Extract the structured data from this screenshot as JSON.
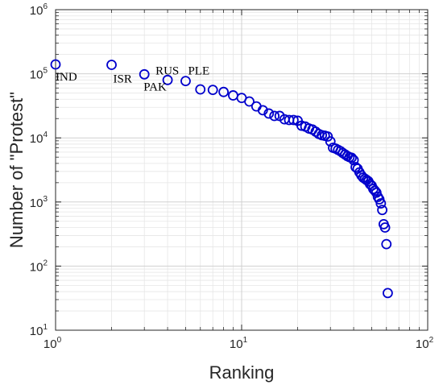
{
  "chart_data": {
    "type": "scatter",
    "title": "",
    "xlabel": "Ranking",
    "ylabel": "Number of \"Protest\"",
    "x_scale": "log",
    "y_scale": "log",
    "xlim": [
      1,
      100
    ],
    "ylim": [
      10,
      1000000
    ],
    "grid": true,
    "marker": "open-circle",
    "marker_color": "#0000CC",
    "x_ticks": [
      {
        "base": "10",
        "exp": "0",
        "value": 1
      },
      {
        "base": "10",
        "exp": "1",
        "value": 10
      },
      {
        "base": "10",
        "exp": "2",
        "value": 100
      }
    ],
    "y_ticks": [
      {
        "base": "10",
        "exp": "1",
        "value": 10
      },
      {
        "base": "10",
        "exp": "2",
        "value": 100
      },
      {
        "base": "10",
        "exp": "3",
        "value": 1000
      },
      {
        "base": "10",
        "exp": "4",
        "value": 10000
      },
      {
        "base": "10",
        "exp": "5",
        "value": 100000
      },
      {
        "base": "10",
        "exp": "6",
        "value": 1000000
      }
    ],
    "annotations": [
      {
        "text": "IND",
        "x": 1,
        "y": 140000
      },
      {
        "text": "ISR",
        "x": 2,
        "y": 138000
      },
      {
        "text": "PAK",
        "x": 3,
        "y": 98000
      },
      {
        "text": "RUS",
        "x": 4,
        "y": 80000
      },
      {
        "text": "PLE",
        "x": 5,
        "y": 77000
      }
    ],
    "points": [
      [
        1,
        140000
      ],
      [
        2,
        138000
      ],
      [
        3,
        98000
      ],
      [
        4,
        80000
      ],
      [
        5,
        77000
      ],
      [
        6,
        57000
      ],
      [
        7,
        56000
      ],
      [
        8,
        52000
      ],
      [
        9,
        46000
      ],
      [
        10,
        42000
      ],
      [
        11,
        37000
      ],
      [
        12,
        31000
      ],
      [
        13,
        27000
      ],
      [
        14,
        24000
      ],
      [
        15,
        22000
      ],
      [
        16,
        22000
      ],
      [
        17,
        19500
      ],
      [
        18,
        19000
      ],
      [
        19,
        19000
      ],
      [
        20,
        18500
      ],
      [
        21,
        15500
      ],
      [
        22,
        15000
      ],
      [
        23,
        14000
      ],
      [
        24,
        13500
      ],
      [
        25,
        12500
      ],
      [
        26,
        11500
      ],
      [
        27,
        11000
      ],
      [
        28,
        10800
      ],
      [
        29,
        10500
      ],
      [
        30,
        8800
      ],
      [
        31,
        7000
      ],
      [
        32,
        6800
      ],
      [
        33,
        6500
      ],
      [
        34,
        6200
      ],
      [
        35,
        5800
      ],
      [
        36,
        5500
      ],
      [
        37,
        5200
      ],
      [
        38,
        5000
      ],
      [
        39,
        4900
      ],
      [
        40,
        4500
      ],
      [
        41,
        3500
      ],
      [
        42,
        3300
      ],
      [
        43,
        2900
      ],
      [
        44,
        2600
      ],
      [
        45,
        2400
      ],
      [
        46,
        2300
      ],
      [
        47,
        2200
      ],
      [
        48,
        2100
      ],
      [
        49,
        1900
      ],
      [
        50,
        1800
      ],
      [
        51,
        1600
      ],
      [
        52,
        1500
      ],
      [
        53,
        1400
      ],
      [
        54,
        1200
      ],
      [
        55,
        1100
      ],
      [
        56,
        950
      ],
      [
        57,
        750
      ],
      [
        58,
        450
      ],
      [
        59,
        400
      ],
      [
        60,
        220
      ],
      [
        61,
        38
      ]
    ]
  }
}
